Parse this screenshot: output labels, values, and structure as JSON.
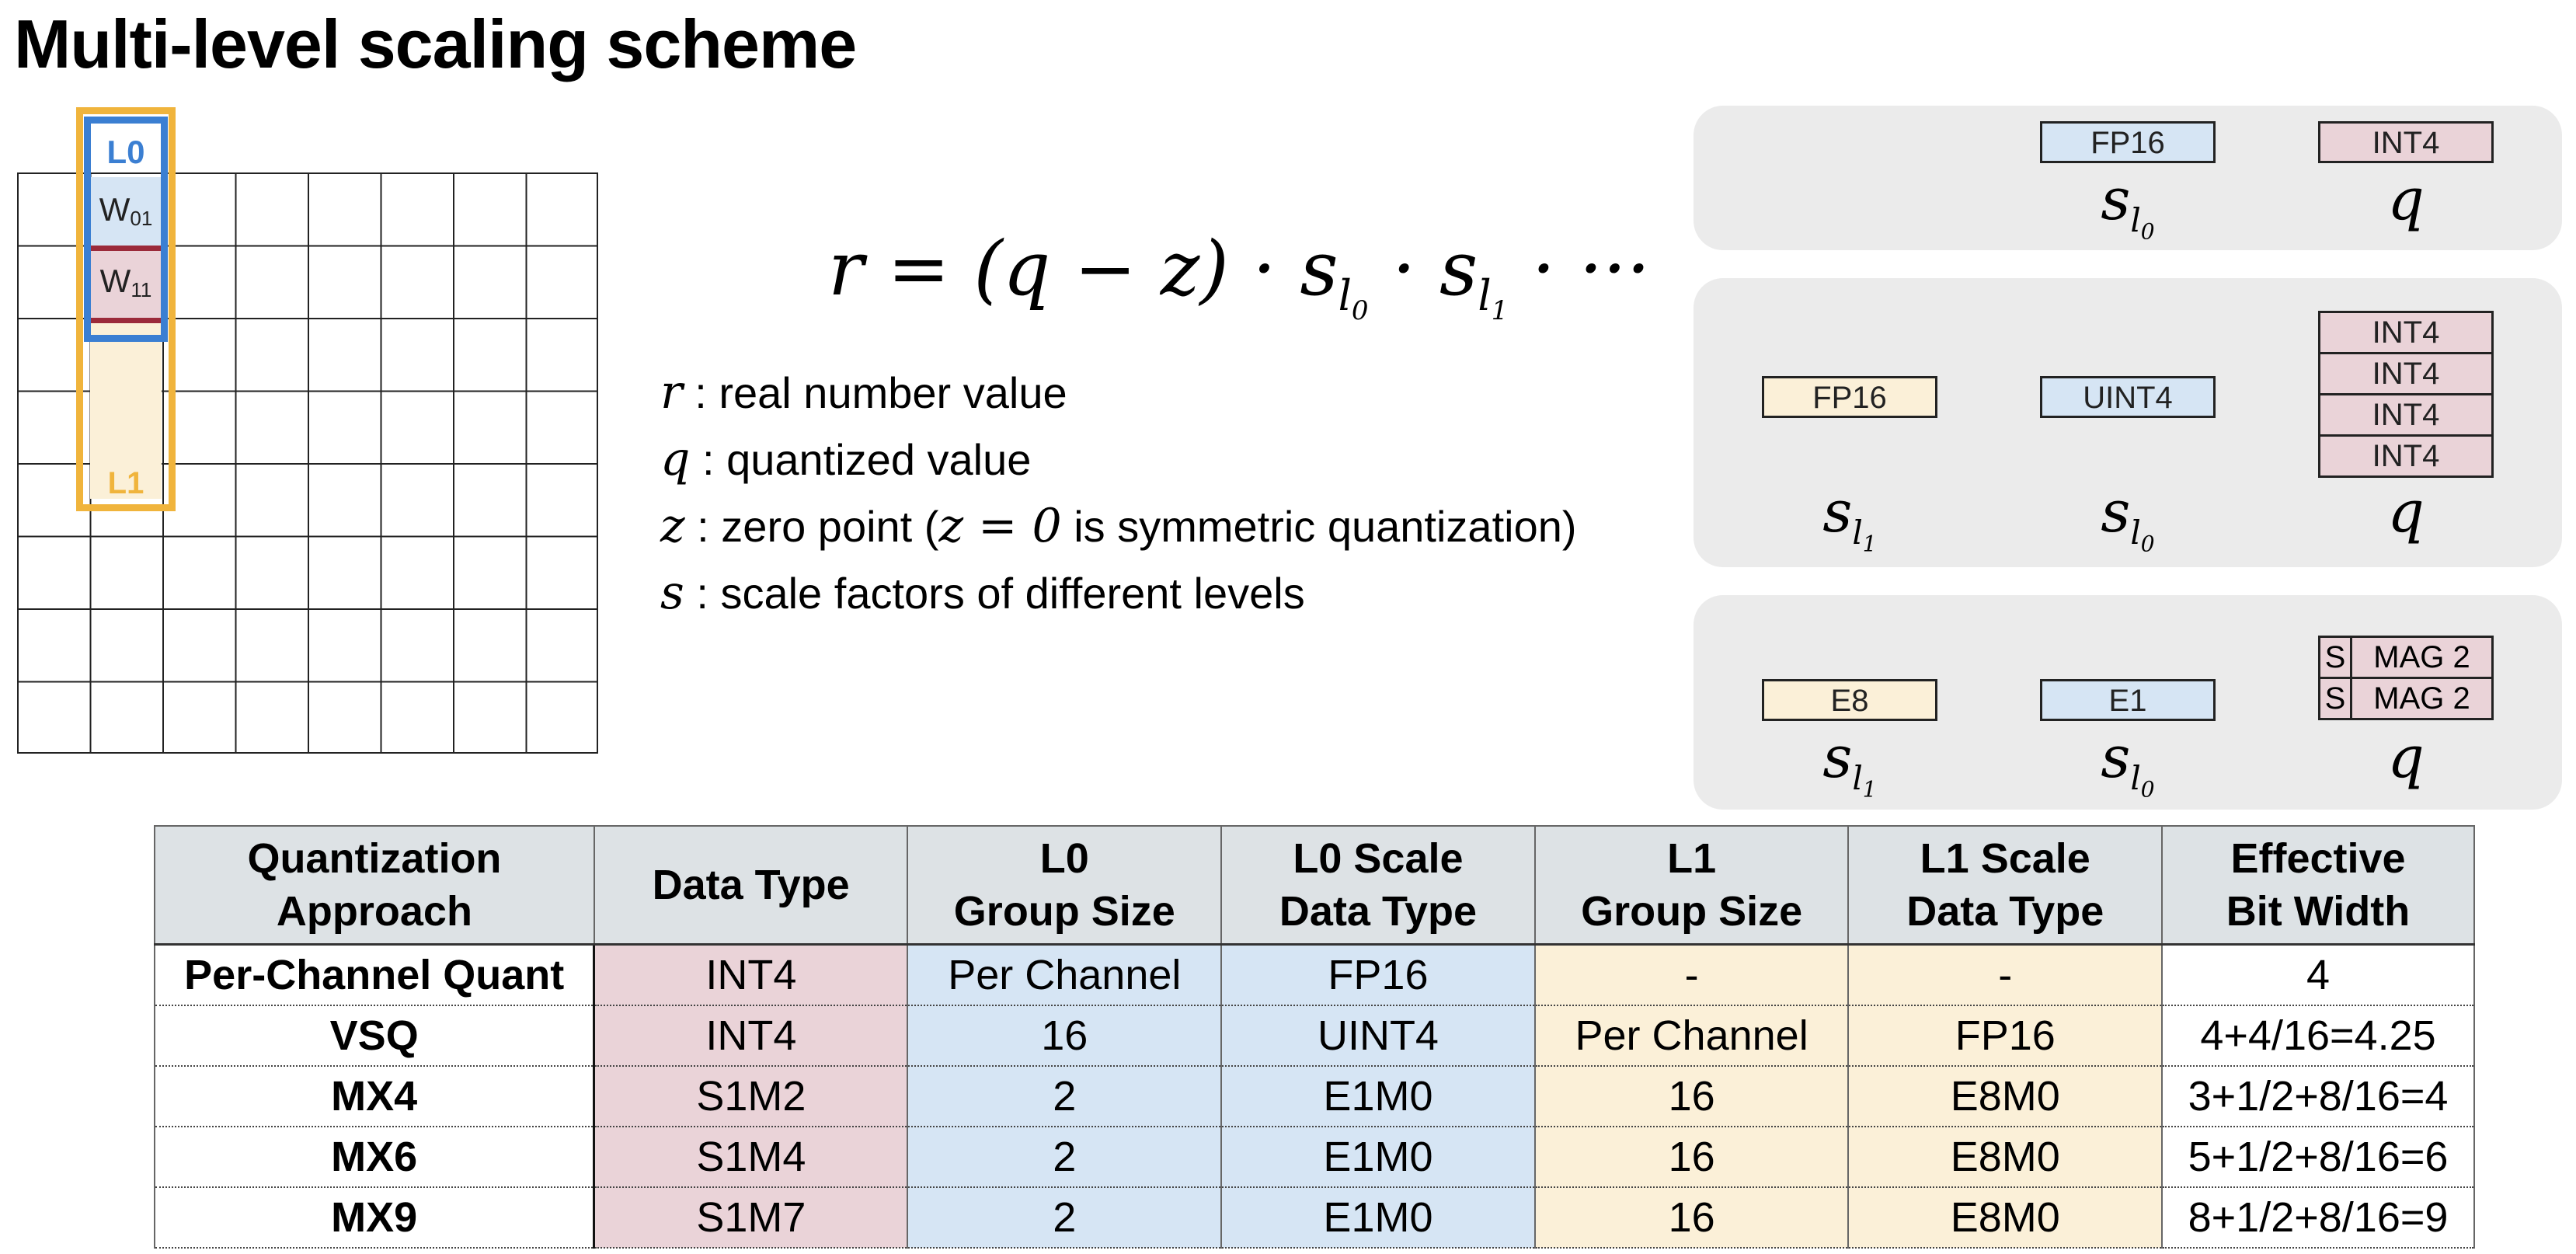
{
  "title": "Multi-level scaling scheme",
  "diagram": {
    "l0_label": "L0",
    "l1_label": "L1",
    "w01": {
      "base": "W",
      "sub": "01"
    },
    "w11": {
      "base": "W",
      "sub": "11"
    }
  },
  "formula": {
    "lhs": "r = (q − z) · s",
    "s0_sub": "l",
    "s0_subsub": "0",
    "mid": " · s",
    "s1_sub": "l",
    "s1_subsub": "1",
    "tail": " · ···"
  },
  "legend": [
    {
      "symbol": "r",
      "text": " : real number value"
    },
    {
      "symbol": "q",
      "text": " : quantized value"
    },
    {
      "symbol": "z",
      "text_before": " : zero point (",
      "math": "z = 0",
      "text_after": " is symmetric quantization)"
    },
    {
      "symbol": "s",
      "text": " : scale factors of different levels"
    }
  ],
  "panels": {
    "p1": {
      "fp16": "FP16",
      "int4": "INT4",
      "sym_s": "s",
      "sym_l": "l",
      "sym_0": "0",
      "sym_q": "q"
    },
    "p2": {
      "fp16": "FP16",
      "uint4": "UINT4",
      "int4_rows": [
        "INT4",
        "INT4",
        "INT4",
        "INT4"
      ],
      "sym_s": "s",
      "sym_l": "l",
      "sym_1": "1",
      "sym_0": "0",
      "sym_q": "q"
    },
    "p3": {
      "e8": "E8",
      "e1": "E1",
      "smag_rows": [
        {
          "s": "S",
          "m": "MAG 2"
        },
        {
          "s": "S",
          "m": "MAG 2"
        }
      ],
      "sym_s": "s",
      "sym_l": "l",
      "sym_1": "1",
      "sym_0": "0",
      "sym_q": "q"
    }
  },
  "table": {
    "headers": [
      [
        "Quantization",
        "Approach"
      ],
      [
        "Data Type"
      ],
      [
        "L0",
        "Group Size"
      ],
      [
        "L0 Scale",
        "Data Type"
      ],
      [
        "L1",
        "Group Size"
      ],
      [
        "L1 Scale",
        "Data Type"
      ],
      [
        "Effective",
        "Bit Width"
      ]
    ],
    "rows": [
      [
        "Per-Channel Quant",
        "INT4",
        "Per Channel",
        "FP16",
        "-",
        "-",
        "4"
      ],
      [
        "VSQ",
        "INT4",
        "16",
        "UINT4",
        "Per Channel",
        "FP16",
        "4+4/16=4.25"
      ],
      [
        "MX4",
        "S1M2",
        "2",
        "E1M0",
        "16",
        "E8M0",
        "3+1/2+8/16=4"
      ],
      [
        "MX6",
        "S1M4",
        "2",
        "E1M0",
        "16",
        "E8M0",
        "5+1/2+8/16=6"
      ],
      [
        "MX9",
        "S1M7",
        "2",
        "E1M0",
        "16",
        "E8M0",
        "8+1/2+8/16=9"
      ]
    ]
  }
}
